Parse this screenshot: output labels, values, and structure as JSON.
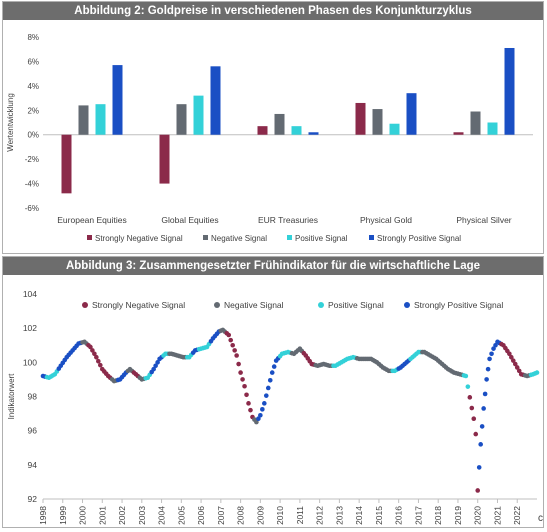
{
  "chart_data": [
    {
      "type": "bar",
      "title": "Abbildung 2: Goldpreise in verschiedenen Phasen des Konjunkturzyklus",
      "ylabel": "Wertentwicklung",
      "ylim": [
        -6,
        8
      ],
      "yticks": [
        "-6%",
        "-4%",
        "-2%",
        "0%",
        "2%",
        "4%",
        "6%",
        "8%"
      ],
      "categories": [
        "European Equities",
        "Global Equities",
        "EUR Treasuries",
        "Physical Gold",
        "Physical Silver"
      ],
      "legend_position": "bottom",
      "grid": false,
      "series": [
        {
          "name": "Strongly Negative Signal",
          "color": "#8b2a4a",
          "values": [
            -4.8,
            -4.0,
            0.7,
            2.6,
            0.2
          ]
        },
        {
          "name": "Negative Signal",
          "color": "#636a72",
          "values": [
            2.4,
            2.5,
            1.7,
            2.1,
            1.9
          ]
        },
        {
          "name": "Positive Signal",
          "color": "#33d1d8",
          "values": [
            2.5,
            3.2,
            0.7,
            0.9,
            1.0
          ]
        },
        {
          "name": "Strongly Positive Signal",
          "color": "#1a4fc4",
          "values": [
            5.7,
            5.6,
            0.2,
            3.4,
            7.1
          ]
        }
      ]
    },
    {
      "type": "scatter",
      "title": "Abbildung 3: Zusammengesetzter Frühindikator für die wirtschaftliche Lage",
      "ylabel": "Indikatorwert",
      "ylim": [
        92,
        104
      ],
      "yticks": [
        "92",
        "94",
        "96",
        "98",
        "100",
        "102",
        "104"
      ],
      "xlim": [
        1998,
        2023
      ],
      "xticks": [
        "1998",
        "1999",
        "2000",
        "2001",
        "2002",
        "2003",
        "2004",
        "2005",
        "2006",
        "2007",
        "2008",
        "2009",
        "2010",
        "2011",
        "2012",
        "2013",
        "2014",
        "2015",
        "2016",
        "2017",
        "2018",
        "2019",
        "2020",
        "2021",
        "2022"
      ],
      "legend_position": "top",
      "grid": false,
      "series": [
        {
          "name": "Strongly Negative Signal",
          "color": "#8b2a4a"
        },
        {
          "name": "Negative Signal",
          "color": "#636a72"
        },
        {
          "name": "Positive Signal",
          "color": "#33d1d8"
        },
        {
          "name": "Strongly Positive Signal",
          "color": "#1a4fc4"
        }
      ],
      "points": [
        [
          1998.0,
          99.2,
          3
        ],
        [
          1998.3,
          99.1,
          2
        ],
        [
          1998.6,
          99.3,
          2
        ],
        [
          1998.9,
          99.8,
          3
        ],
        [
          1999.2,
          100.3,
          3
        ],
        [
          1999.5,
          100.7,
          3
        ],
        [
          1999.8,
          101.1,
          3
        ],
        [
          2000.1,
          101.2,
          1
        ],
        [
          2000.4,
          100.9,
          0
        ],
        [
          2000.7,
          100.3,
          0
        ],
        [
          2001.0,
          99.6,
          0
        ],
        [
          2001.3,
          99.2,
          0
        ],
        [
          2001.6,
          98.9,
          1
        ],
        [
          2001.9,
          99.0,
          3
        ],
        [
          2002.2,
          99.4,
          3
        ],
        [
          2002.4,
          99.6,
          1
        ],
        [
          2002.7,
          99.3,
          0
        ],
        [
          2003.0,
          99.0,
          1
        ],
        [
          2003.3,
          99.1,
          2
        ],
        [
          2003.6,
          99.6,
          3
        ],
        [
          2003.9,
          100.2,
          3
        ],
        [
          2004.2,
          100.5,
          2
        ],
        [
          2004.5,
          100.5,
          1
        ],
        [
          2004.8,
          100.4,
          1
        ],
        [
          2005.1,
          100.3,
          1
        ],
        [
          2005.4,
          100.3,
          2
        ],
        [
          2005.7,
          100.7,
          3
        ],
        [
          2006.0,
          100.8,
          2
        ],
        [
          2006.3,
          100.9,
          2
        ],
        [
          2006.6,
          101.4,
          3
        ],
        [
          2006.9,
          101.8,
          3
        ],
        [
          2007.1,
          101.9,
          1
        ],
        [
          2007.4,
          101.6,
          0
        ],
        [
          2007.6,
          101.0,
          0
        ],
        [
          2007.8,
          100.4,
          0
        ],
        [
          2008.0,
          99.4,
          0
        ],
        [
          2008.2,
          98.6,
          0
        ],
        [
          2008.4,
          97.6,
          0
        ],
        [
          2008.6,
          96.8,
          0
        ],
        [
          2008.8,
          96.5,
          1
        ],
        [
          2009.0,
          96.9,
          3
        ],
        [
          2009.2,
          97.6,
          3
        ],
        [
          2009.4,
          98.5,
          3
        ],
        [
          2009.6,
          99.4,
          3
        ],
        [
          2009.8,
          100.1,
          3
        ],
        [
          2010.1,
          100.5,
          2
        ],
        [
          2010.4,
          100.6,
          2
        ],
        [
          2010.7,
          100.5,
          1
        ],
        [
          2011.0,
          100.8,
          1
        ],
        [
          2011.3,
          100.4,
          0
        ],
        [
          2011.6,
          99.9,
          0
        ],
        [
          2011.9,
          99.8,
          1
        ],
        [
          2012.2,
          99.9,
          1
        ],
        [
          2012.5,
          99.8,
          1
        ],
        [
          2012.8,
          99.8,
          2
        ],
        [
          2013.1,
          100.0,
          2
        ],
        [
          2013.4,
          100.2,
          2
        ],
        [
          2013.7,
          100.3,
          2
        ],
        [
          2014.0,
          100.2,
          1
        ],
        [
          2014.3,
          100.2,
          1
        ],
        [
          2014.6,
          100.2,
          1
        ],
        [
          2014.9,
          100.0,
          1
        ],
        [
          2015.2,
          99.7,
          1
        ],
        [
          2015.5,
          99.5,
          1
        ],
        [
          2015.8,
          99.5,
          2
        ],
        [
          2016.1,
          99.7,
          3
        ],
        [
          2016.4,
          100.0,
          3
        ],
        [
          2016.7,
          100.3,
          2
        ],
        [
          2017.0,
          100.6,
          2
        ],
        [
          2017.3,
          100.6,
          1
        ],
        [
          2017.6,
          100.4,
          1
        ],
        [
          2017.9,
          100.2,
          1
        ],
        [
          2018.2,
          99.9,
          1
        ],
        [
          2018.5,
          99.6,
          1
        ],
        [
          2018.8,
          99.4,
          1
        ],
        [
          2019.1,
          99.3,
          1
        ],
        [
          2019.4,
          99.2,
          2
        ],
        [
          2019.8,
          96.7,
          0
        ],
        [
          2019.9,
          95.8,
          0
        ],
        [
          2020.0,
          92.5,
          0
        ],
        [
          2020.15,
          95.2,
          3
        ],
        [
          2020.3,
          97.3,
          3
        ],
        [
          2020.45,
          99.0,
          3
        ],
        [
          2020.6,
          100.2,
          3
        ],
        [
          2020.8,
          100.8,
          3
        ],
        [
          2021.0,
          101.2,
          3
        ],
        [
          2021.3,
          101.0,
          0
        ],
        [
          2021.6,
          100.5,
          0
        ],
        [
          2021.9,
          99.9,
          0
        ],
        [
          2022.2,
          99.3,
          0
        ],
        [
          2022.5,
          99.2,
          1
        ],
        [
          2022.8,
          99.3,
          2
        ],
        [
          2023.0,
          99.4,
          2
        ]
      ]
    }
  ],
  "corner_mark": "c"
}
